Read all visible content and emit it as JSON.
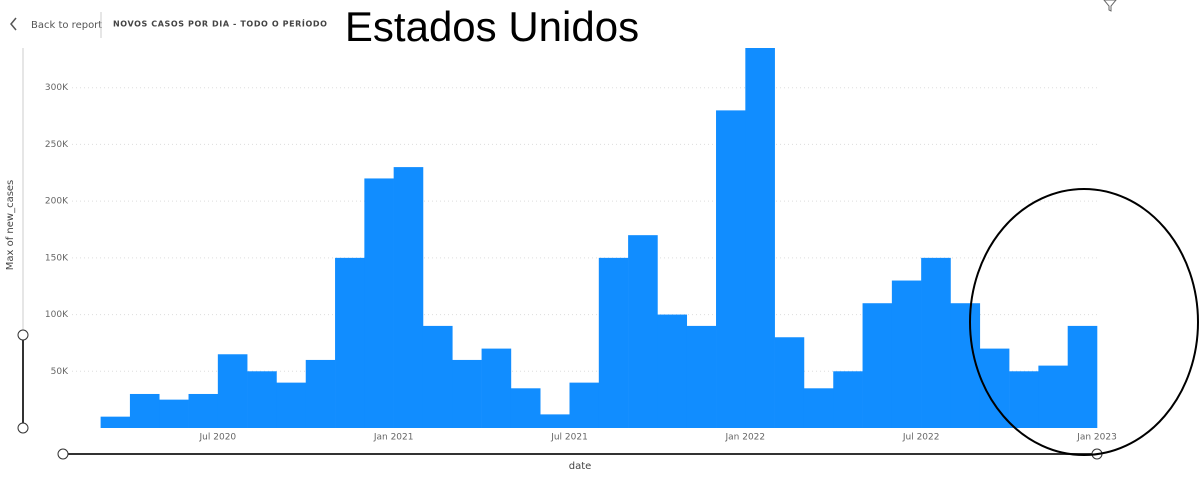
{
  "header": {
    "back": "Back to report",
    "page_title": "NOVOS CASOS POR DIA - TODO O PERÍODO"
  },
  "chart_data": {
    "type": "bar",
    "title": "Estados Unidos",
    "x_label": "date",
    "y_label": "Max of new_cases",
    "color": "#118dff",
    "grid": true,
    "x": [
      "2020-01",
      "2020-02",
      "2020-03",
      "2020-04",
      "2020-05",
      "2020-06",
      "2020-07",
      "2020-08",
      "2020-09",
      "2020-10",
      "2020-11",
      "2020-12",
      "2021-01",
      "2021-02",
      "2021-03",
      "2021-04",
      "2021-05",
      "2021-06",
      "2021-07",
      "2021-08",
      "2021-09",
      "2021-10",
      "2021-11",
      "2021-12",
      "2022-01",
      "2022-02",
      "2022-03",
      "2022-04",
      "2022-05",
      "2022-06",
      "2022-07",
      "2022-08",
      "2022-09",
      "2022-10",
      "2022-11",
      "2022-12"
    ],
    "values": [
      0,
      0,
      10000,
      30000,
      25000,
      30000,
      65000,
      50000,
      40000,
      60000,
      150000,
      220000,
      230000,
      90000,
      60000,
      70000,
      35000,
      12000,
      40000,
      150000,
      170000,
      100000,
      90000,
      280000,
      335000,
      80000,
      35000,
      50000,
      110000,
      130000,
      150000,
      110000,
      70000,
      50000,
      55000,
      90000
    ],
    "xlim": [
      "2020-01",
      "2023-01"
    ],
    "xticks": [
      {
        "value": "2020-07",
        "label": "Jul 2020"
      },
      {
        "value": "2021-01",
        "label": "Jan 2021"
      },
      {
        "value": "2021-07",
        "label": "Jul 2021"
      },
      {
        "value": "2022-01",
        "label": "Jan 2022"
      },
      {
        "value": "2022-07",
        "label": "Jul 2022"
      },
      {
        "value": "2023-01",
        "label": "Jan 2023"
      }
    ],
    "ylim": [
      0,
      335000
    ],
    "yticks": [
      {
        "value": 50000,
        "label": "50K"
      },
      {
        "value": 100000,
        "label": "100K"
      },
      {
        "value": 150000,
        "label": "150K"
      },
      {
        "value": 200000,
        "label": "200K"
      },
      {
        "value": 250000,
        "label": "250K"
      },
      {
        "value": 300000,
        "label": "300K"
      }
    ]
  }
}
